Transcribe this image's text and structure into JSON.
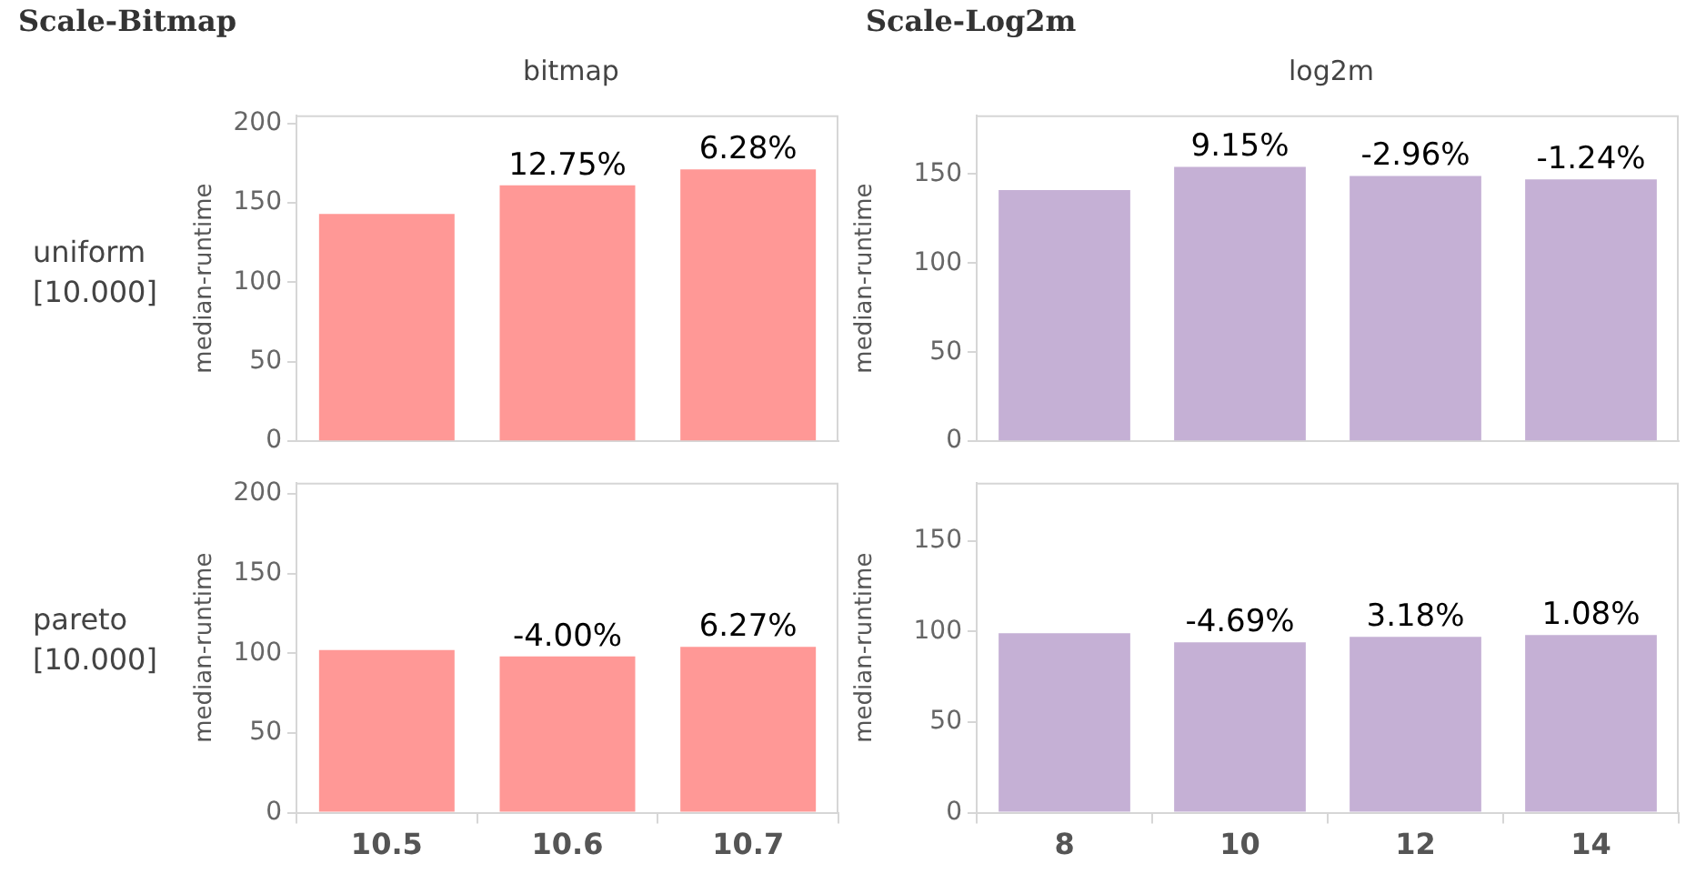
{
  "chart_data": [
    {
      "type": "bar",
      "title": "Scale-Bitmap",
      "subtitle": "bitmap",
      "annotations": [
        "uniform\n[10.000]",
        {
          "text": "12.75%",
          "x": "10.6",
          "y": 161
        },
        {
          "text": "6.28%",
          "x": "10.7",
          "y": 171
        }
      ],
      "ylabel": "median-runtime",
      "categories": [
        "10.5",
        "10.6",
        "10.7"
      ],
      "series": [
        {
          "color": "#ff9896",
          "values": [
            143,
            161,
            171
          ]
        }
      ],
      "ylim": [
        0,
        205
      ],
      "yticks": [
        0,
        50,
        100,
        150,
        200
      ],
      "grid": false,
      "legend": false,
      "tick_labels": "y"
    },
    {
      "type": "bar",
      "title": "Scale-Log2m",
      "subtitle": "log2m",
      "annotations": [
        {
          "text": "9.15%",
          "x": "10",
          "y": 154
        },
        {
          "text": "-2.96%",
          "x": "12",
          "y": 149
        },
        {
          "text": "-1.24%",
          "x": "14",
          "y": 147
        }
      ],
      "ylabel": "median-runtime",
      "categories": [
        "8",
        "10",
        "12",
        "14"
      ],
      "series": [
        {
          "color": "#c5b0d5",
          "values": [
            141,
            154,
            149,
            147
          ]
        }
      ],
      "ylim": [
        0,
        183
      ],
      "yticks": [
        0,
        50,
        100,
        150
      ],
      "grid": false,
      "legend": false,
      "tick_labels": "y"
    },
    {
      "type": "bar",
      "annotations": [
        "pareto\n[10.000]",
        {
          "text": "-4.00%",
          "x": "10.6",
          "y": 98
        },
        {
          "text": "6.27%",
          "x": "10.7",
          "y": 104
        }
      ],
      "ylabel": "median-runtime",
      "categories": [
        "10.5",
        "10.6",
        "10.7"
      ],
      "series": [
        {
          "color": "#ff9896",
          "values": [
            102,
            98,
            104
          ]
        }
      ],
      "ylim": [
        0,
        207
      ],
      "yticks": [
        0,
        50,
        100,
        150,
        200
      ],
      "grid": false,
      "legend": false
    },
    {
      "type": "bar",
      "annotations": [
        {
          "text": "-4.69%",
          "x": "10",
          "y": 94
        },
        {
          "text": "3.18%",
          "x": "12",
          "y": 97
        },
        {
          "text": "1.08%",
          "x": "14",
          "y": 98
        }
      ],
      "ylabel": "median-runtime",
      "categories": [
        "8",
        "10",
        "12",
        "14"
      ],
      "series": [
        {
          "color": "#c5b0d5",
          "values": [
            99,
            94,
            97,
            98
          ]
        }
      ],
      "ylim": [
        0,
        182
      ],
      "yticks": [
        0,
        50,
        100,
        150
      ],
      "grid": false,
      "legend": false
    }
  ]
}
